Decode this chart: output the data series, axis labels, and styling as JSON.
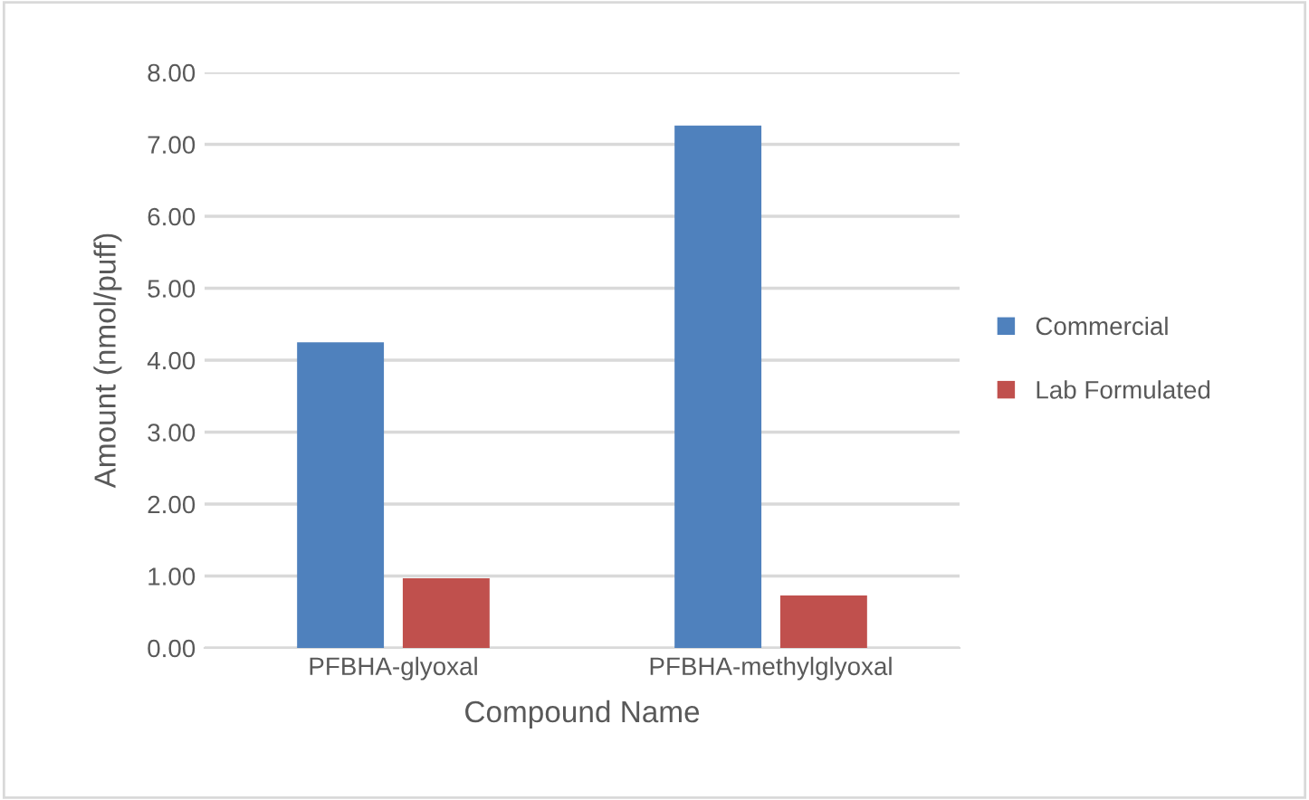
{
  "chart_data": {
    "type": "bar",
    "xlabel": "Compound Name",
    "ylabel": "Amount (nmol/puff)",
    "categories": [
      "PFBHA-glyoxal",
      "PFBHA-methylglyoxal"
    ],
    "series": [
      {
        "name": "Commercial",
        "color": "#4f81bd",
        "values": [
          4.25,
          7.26
        ]
      },
      {
        "name": "Lab Formulated",
        "color": "#c0504d",
        "values": [
          0.97,
          0.73
        ]
      }
    ],
    "ylim": [
      0,
      8
    ],
    "yticks": [
      {
        "value": 0,
        "label": "0.00"
      },
      {
        "value": 1,
        "label": "1.00"
      },
      {
        "value": 2,
        "label": "2.00"
      },
      {
        "value": 3,
        "label": "3.00"
      },
      {
        "value": 4,
        "label": "4.00"
      },
      {
        "value": 5,
        "label": "5.00"
      },
      {
        "value": 6,
        "label": "6.00"
      },
      {
        "value": 7,
        "label": "7.00"
      },
      {
        "value": 8,
        "label": "8.00"
      }
    ],
    "grid": "y",
    "legend": "right"
  }
}
